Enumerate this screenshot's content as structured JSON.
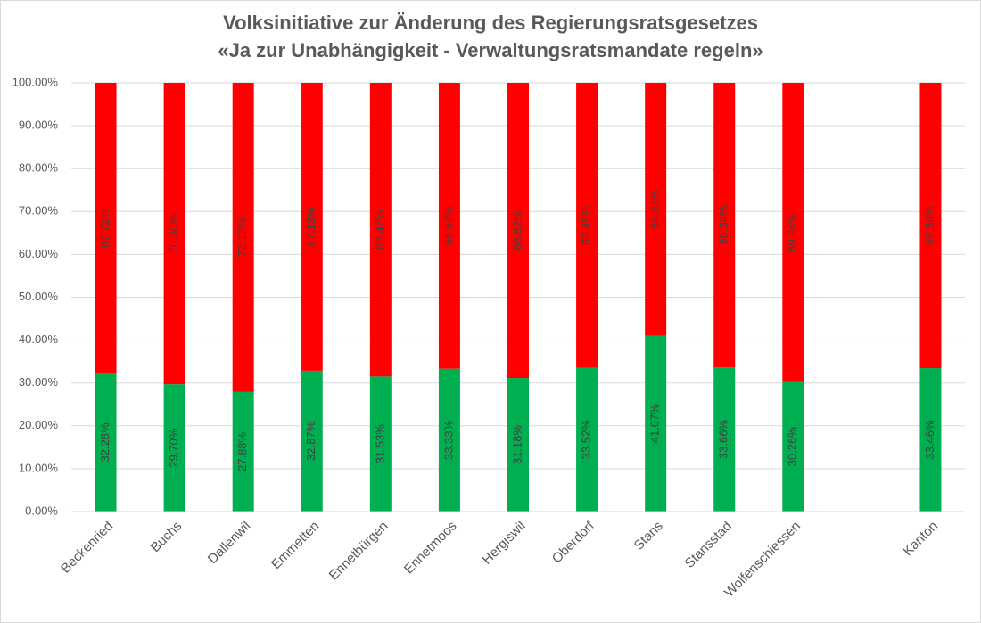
{
  "chart_data": {
    "type": "stacked-bar",
    "title": [
      "Volksinitiative zur Änderung des Regierungsratsgesetzes",
      "«Ja zur Unabhängigkeit - Verwaltungsratsmandate regeln»"
    ],
    "categories": [
      "Beckenried",
      "Buchs",
      "Dallenwil",
      "Emmetten",
      "Ennetbürgen",
      "Ennetmoos",
      "Hergiswil",
      "Oberdorf",
      "Stans",
      "Stansstad",
      "Wolfenschiessen",
      null,
      "Kanton"
    ],
    "series": [
      {
        "color": "#00b050",
        "values": [
          32.28,
          29.7,
          27.88,
          32.87,
          31.53,
          33.33,
          31.18,
          33.52,
          41.07,
          33.66,
          30.26,
          null,
          33.46
        ],
        "value_labels": [
          "32.28%",
          "29.70%",
          "27.88%",
          "32.87%",
          "31.53%",
          "33.33%",
          "31.18%",
          "33.52%",
          "41.07%",
          "33.66%",
          "30.26%",
          null,
          "33.46%"
        ]
      },
      {
        "color": "#ff0000",
        "values": [
          67.72,
          70.3,
          72.12,
          67.13,
          68.47,
          66.67,
          68.82,
          66.48,
          58.93,
          66.34,
          69.74,
          null,
          66.54
        ],
        "value_labels": [
          "67.72%",
          "70.30%",
          "72.12%",
          "67.13%",
          "68.47%",
          "66.67%",
          "68.82%",
          "66.48%",
          "58.93%",
          "66.34%",
          "69.74%",
          null,
          "66.54%"
        ]
      }
    ],
    "ylim": [
      0,
      100
    ],
    "yticks": [
      {
        "value": 0,
        "label": "0.00%"
      },
      {
        "value": 10,
        "label": "10.00%"
      },
      {
        "value": 20,
        "label": "20.00%"
      },
      {
        "value": 30,
        "label": "30.00%"
      },
      {
        "value": 40,
        "label": "40.00%"
      },
      {
        "value": 50,
        "label": "50.00%"
      },
      {
        "value": 60,
        "label": "60.00%"
      },
      {
        "value": 70,
        "label": "70.00%"
      },
      {
        "value": 80,
        "label": "80.00%"
      },
      {
        "value": 90,
        "label": "90.00%"
      },
      {
        "value": 100,
        "label": "100.00%"
      }
    ],
    "grid": true
  }
}
